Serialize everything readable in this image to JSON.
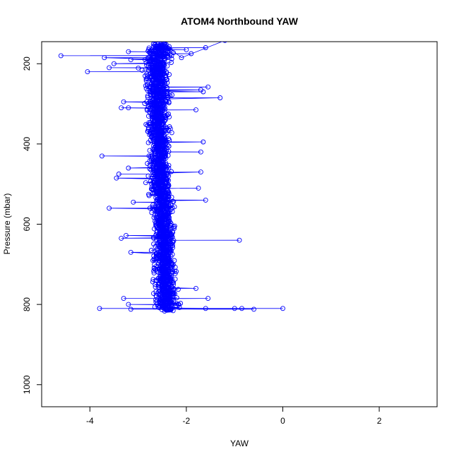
{
  "chart_data": {
    "type": "scatter",
    "title": "ATOM4 Northbound YAW",
    "xlabel": "YAW",
    "ylabel": "Pressure (mbar)",
    "xlim": [
      -5,
      3.2
    ],
    "ylim": [
      1055,
      145
    ],
    "y_reversed": true,
    "grid": false,
    "legend": "none",
    "x_ticks": [
      -4,
      -2,
      0,
      2
    ],
    "x_tick_labels": [
      "-4",
      "-2",
      "0",
      "2"
    ],
    "y_ticks": [
      200,
      400,
      600,
      800,
      1000
    ],
    "y_tick_labels": [
      "200",
      "400",
      "600",
      "800",
      "1000"
    ],
    "series_color": "#0000ff",
    "marker": "open-circle",
    "connected": true,
    "series": [
      {
        "profile_center": [
          [
            -2.55,
            150
          ],
          [
            -2.6,
            200
          ],
          [
            -2.6,
            250
          ],
          [
            -2.6,
            300
          ],
          [
            -2.58,
            350
          ],
          [
            -2.55,
            400
          ],
          [
            -2.55,
            450
          ],
          [
            -2.52,
            500
          ],
          [
            -2.5,
            550
          ],
          [
            -2.48,
            600
          ],
          [
            -2.45,
            650
          ],
          [
            -2.45,
            700
          ],
          [
            -2.42,
            750
          ],
          [
            -2.4,
            790
          ],
          [
            -2.4,
            815
          ]
        ],
        "outliers": [
          [
            -4.6,
            180
          ],
          [
            -4.05,
            220
          ],
          [
            -3.7,
            185
          ],
          [
            -3.6,
            210
          ],
          [
            -3.5,
            200
          ],
          [
            -3.2,
            170
          ],
          [
            -3.15,
            190
          ],
          [
            -2.0,
            165
          ],
          [
            -1.9,
            175
          ],
          [
            -1.6,
            160
          ],
          [
            -1.3,
            285
          ],
          [
            -1.7,
            265
          ],
          [
            -1.65,
            270
          ],
          [
            -3.3,
            295
          ],
          [
            -3.2,
            310
          ],
          [
            -3.35,
            310
          ],
          [
            -1.8,
            315
          ],
          [
            -1.65,
            395
          ],
          [
            -3.75,
            430
          ],
          [
            -3.4,
            475
          ],
          [
            -3.45,
            485
          ],
          [
            -3.2,
            460
          ],
          [
            -1.7,
            420
          ],
          [
            -1.7,
            470
          ],
          [
            -1.6,
            540
          ],
          [
            -3.6,
            560
          ],
          [
            -3.1,
            545
          ],
          [
            -1.75,
            510
          ],
          [
            -0.9,
            640
          ],
          [
            -3.35,
            635
          ],
          [
            -3.25,
            628
          ],
          [
            -3.15,
            670
          ],
          [
            -3.3,
            785
          ],
          [
            -3.2,
            800
          ],
          [
            -1.55,
            785
          ],
          [
            -3.8,
            810
          ],
          [
            -3.15,
            812
          ],
          [
            -1.6,
            810
          ],
          [
            -1.0,
            810
          ],
          [
            -0.85,
            810
          ],
          [
            -0.6,
            812
          ],
          [
            0.0,
            810
          ],
          [
            -1.8,
            760
          ],
          [
            -1.55,
            258
          ]
        ]
      }
    ]
  }
}
